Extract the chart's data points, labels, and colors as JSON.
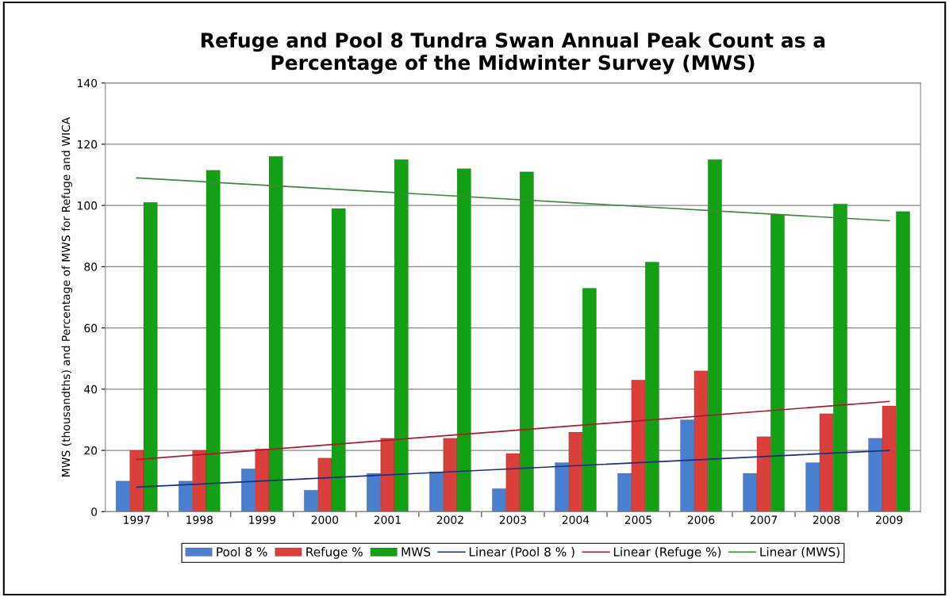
{
  "chart_data": {
    "type": "bar",
    "title": "Refuge and Pool 8 Tundra Swan Annual Peak Count as a\nPercentage of the Midwinter Survey (MWS)",
    "ylabel": "MWS (thousandths) and Percentage of MWS for Refuge and WICA",
    "categories": [
      "1997",
      "1998",
      "1999",
      "2000",
      "2001",
      "2002",
      "2003",
      "2004",
      "2005",
      "2006",
      "2007",
      "2008",
      "2009"
    ],
    "series": [
      {
        "name": "Pool 8 %",
        "color": "#4a7fcf",
        "values": [
          10,
          10,
          14,
          7,
          12.5,
          13,
          7.5,
          16,
          12.5,
          30,
          12.5,
          16,
          24
        ]
      },
      {
        "name": "Refuge %",
        "color": "#d9403c",
        "values": [
          20,
          20,
          20.5,
          17.5,
          24,
          24,
          19,
          26,
          43,
          46,
          24.5,
          32,
          34.5
        ]
      },
      {
        "name": "MWS",
        "color": "#14a014",
        "values": [
          101,
          111.5,
          116,
          99,
          115,
          112,
          111,
          73,
          81.5,
          115,
          97,
          100.5,
          98
        ]
      },
      {
        "name": "Linear (Pool 8 % )",
        "type": "line",
        "color": "#1c2f80",
        "values": [
          8,
          null,
          null,
          null,
          null,
          null,
          null,
          null,
          null,
          null,
          null,
          null,
          20
        ]
      },
      {
        "name": "Linear (Refuge %)",
        "type": "line",
        "color": "#a81c30",
        "values": [
          17,
          null,
          null,
          null,
          null,
          null,
          null,
          null,
          null,
          null,
          null,
          null,
          36
        ]
      },
      {
        "name": "Linear (MWS)",
        "type": "line",
        "color": "#3c8a3c",
        "values": [
          109,
          null,
          null,
          null,
          null,
          null,
          null,
          null,
          null,
          null,
          null,
          null,
          95
        ]
      }
    ],
    "ylim": [
      0,
      140
    ],
    "yticks": [
      0,
      20,
      40,
      60,
      80,
      100,
      120,
      140
    ],
    "grid": "y",
    "legend": "bottom"
  }
}
